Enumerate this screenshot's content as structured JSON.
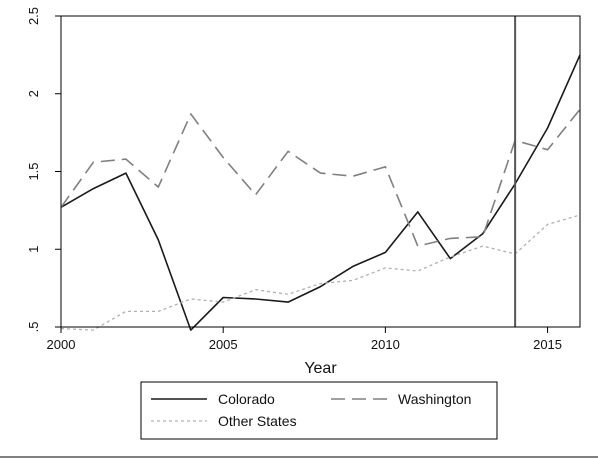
{
  "chart_data": {
    "type": "line",
    "xlabel": "Year",
    "ylabel": "",
    "xlim": [
      2000,
      2016
    ],
    "ylim": [
      0.5,
      2.5
    ],
    "x_ticks": [
      2000,
      2005,
      2010,
      2015
    ],
    "y_ticks": [
      0.5,
      1,
      1.5,
      2,
      2.5
    ],
    "y_tick_labels": [
      ".5",
      "1",
      "1.5",
      "2",
      "2.5"
    ],
    "vertical_line_x": 2014,
    "grid": false,
    "legend_position": "bottom",
    "x": [
      2000,
      2001,
      2002,
      2003,
      2004,
      2005,
      2006,
      2007,
      2008,
      2009,
      2010,
      2011,
      2012,
      2013,
      2014,
      2015,
      2016
    ],
    "series": [
      {
        "name": "Colorado",
        "style": "solid",
        "color": "#1a1a1a",
        "values": [
          1.27,
          1.39,
          1.49,
          1.06,
          0.48,
          0.69,
          0.68,
          0.66,
          0.76,
          0.89,
          0.98,
          1.24,
          0.94,
          1.1,
          1.42,
          1.78,
          2.25
        ]
      },
      {
        "name": "Washington",
        "style": "longdash",
        "color": "#808080",
        "values": [
          1.27,
          1.56,
          1.58,
          1.4,
          1.87,
          1.59,
          1.35,
          1.63,
          1.49,
          1.47,
          1.53,
          1.02,
          1.07,
          1.08,
          1.7,
          1.64,
          1.9
        ]
      },
      {
        "name": "Other States",
        "style": "shortdash",
        "color": "#b0b0b0",
        "values": [
          0.49,
          0.48,
          0.6,
          0.6,
          0.68,
          0.66,
          0.74,
          0.71,
          0.78,
          0.8,
          0.88,
          0.86,
          0.95,
          1.02,
          0.97,
          1.16,
          1.22
        ]
      }
    ]
  }
}
